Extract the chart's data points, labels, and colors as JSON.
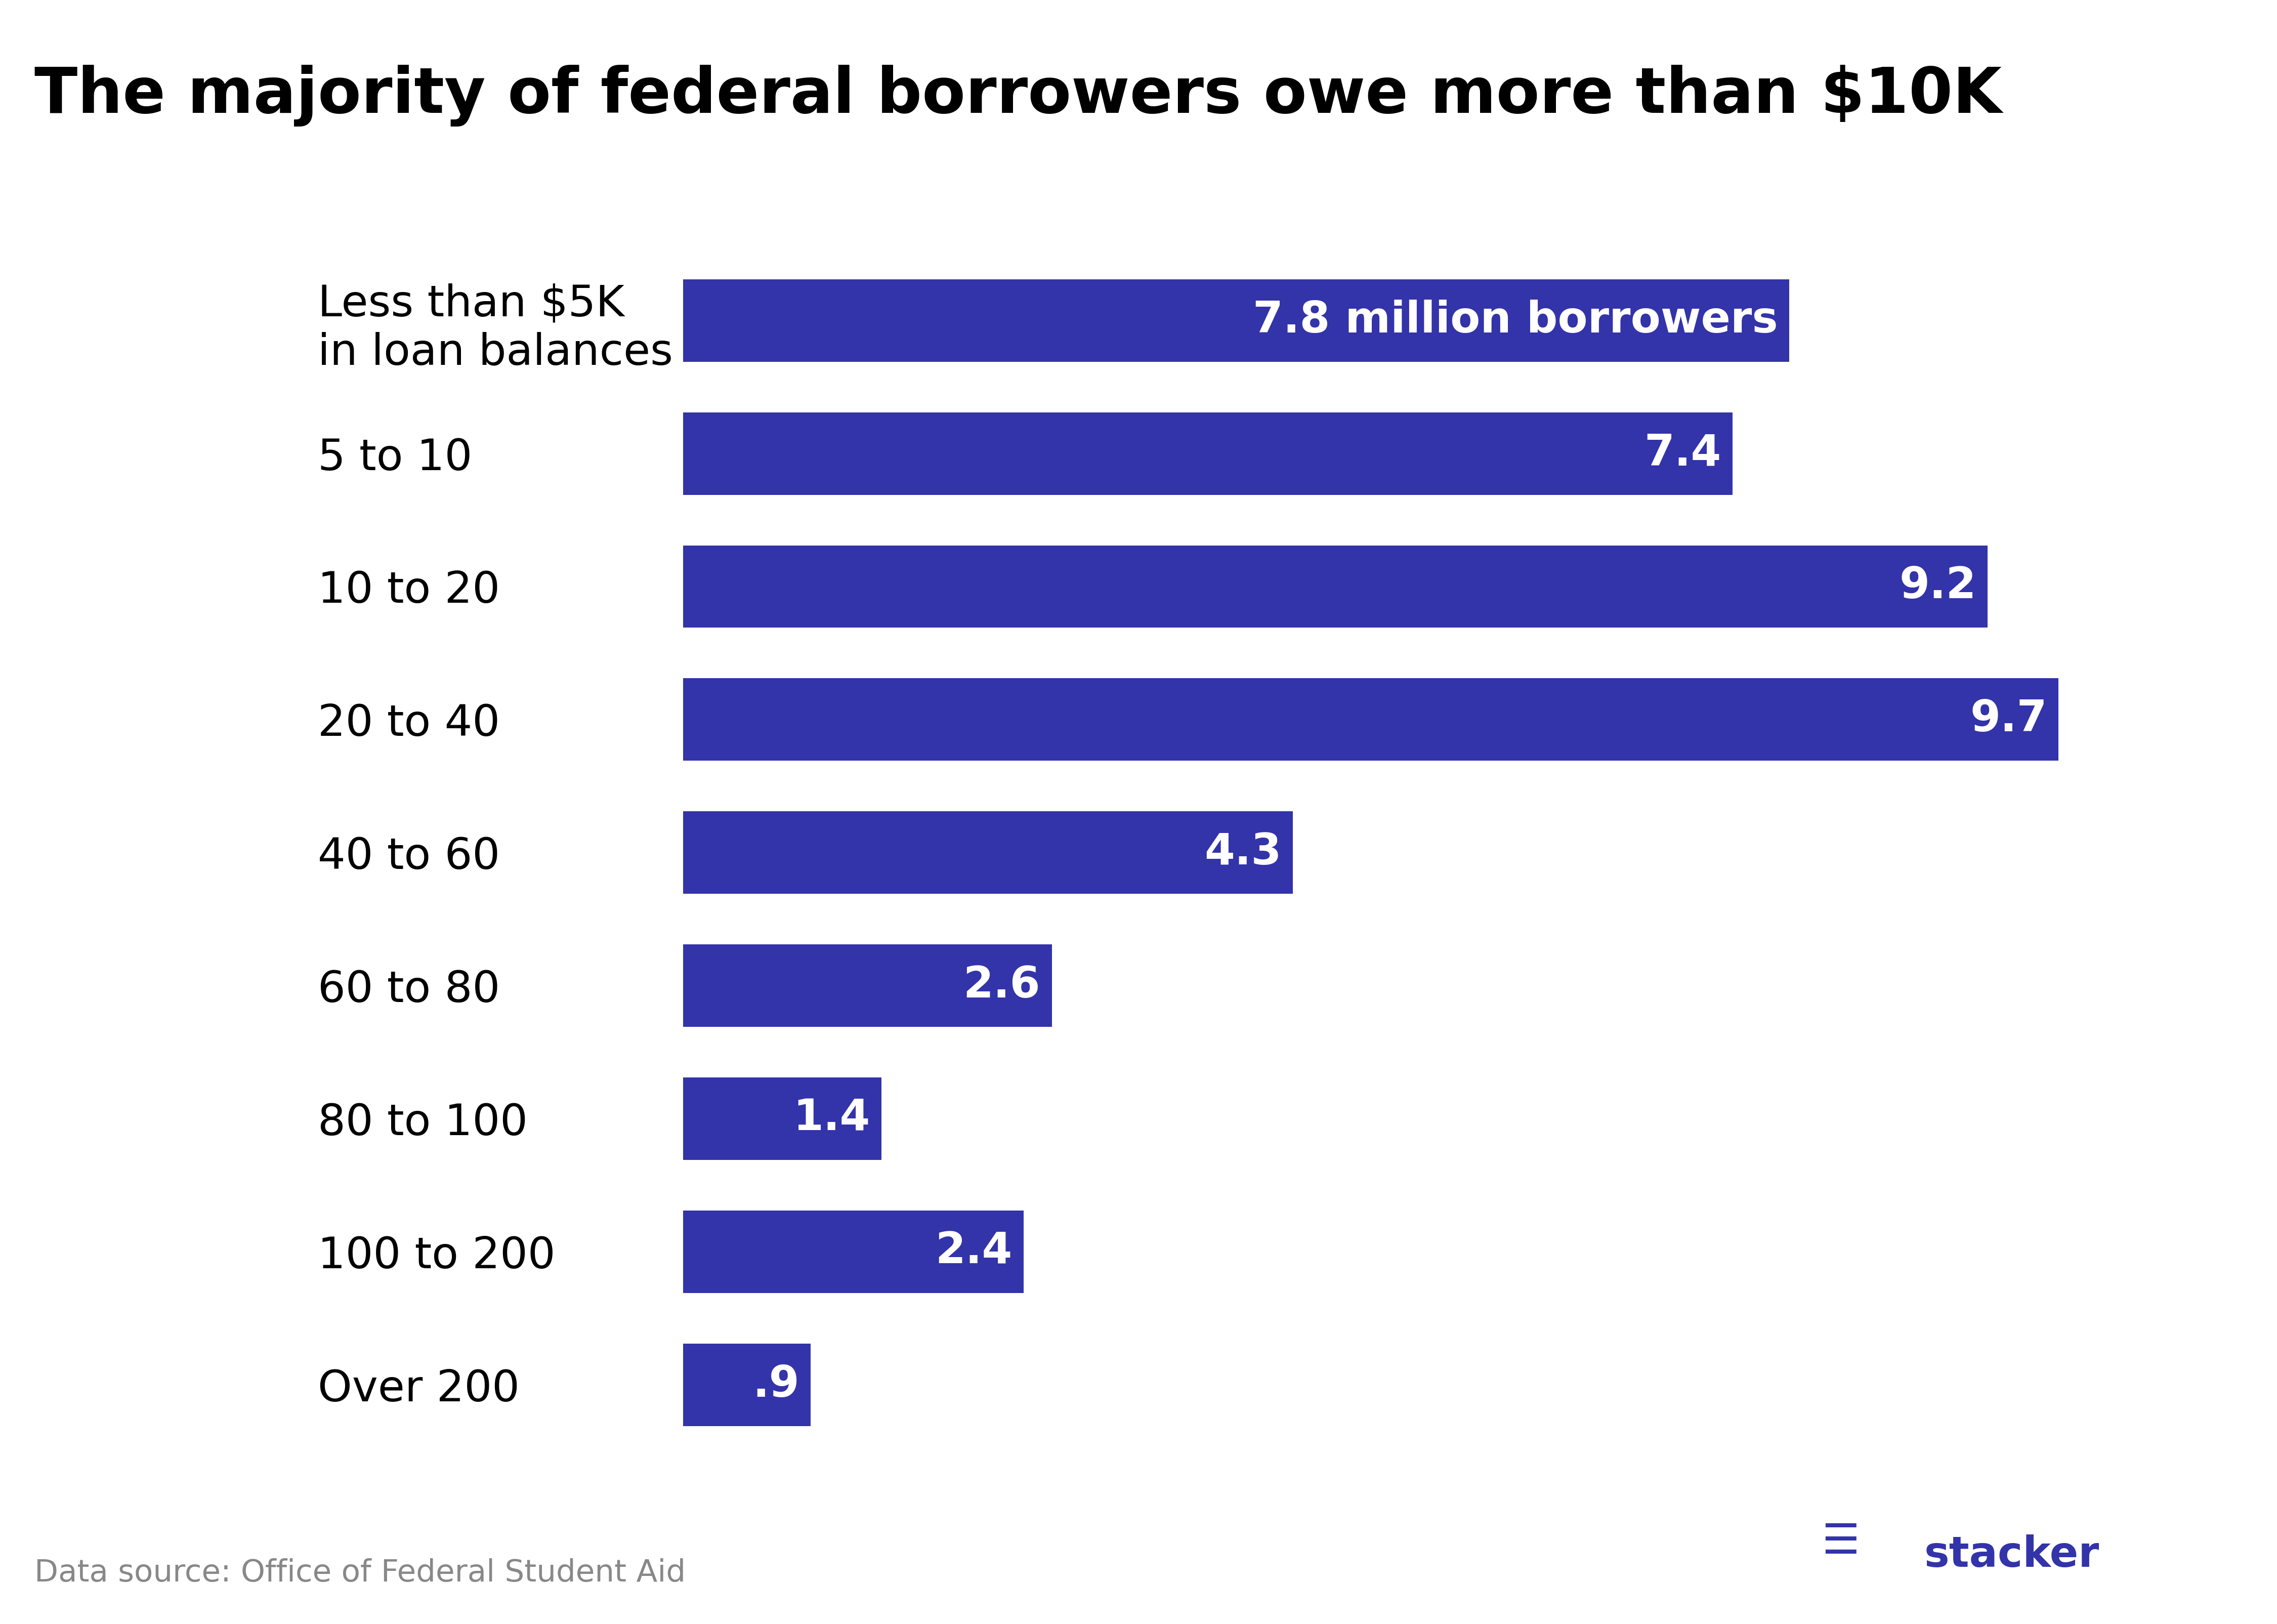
{
  "title": "The majority of federal borrowers owe more than $10K",
  "categories": [
    "Less than $5K\nin loan balances",
    "5 to 10",
    "10 to 20",
    "20 to 40",
    "40 to 60",
    "60 to 80",
    "80 to 100",
    "100 to 200",
    "Over 200"
  ],
  "values": [
    7.8,
    7.4,
    9.2,
    9.7,
    4.3,
    2.6,
    1.4,
    2.4,
    0.9
  ],
  "labels": [
    "7.8 million borrowers",
    "7.4",
    "9.2",
    "9.7",
    "4.3",
    "2.6",
    "1.4",
    "2.4",
    ".9"
  ],
  "bar_color": "#3333aa",
  "text_color_inside": "#ffffff",
  "background_color": "#ffffff",
  "title_fontsize": 90,
  "label_fontsize": 62,
  "category_fontsize": 62,
  "source_text": "Data source: Office of Federal Student Aid",
  "source_fontsize": 44,
  "stacker_fontsize": 60,
  "xlim": [
    0,
    11
  ],
  "bar_height": 0.62
}
